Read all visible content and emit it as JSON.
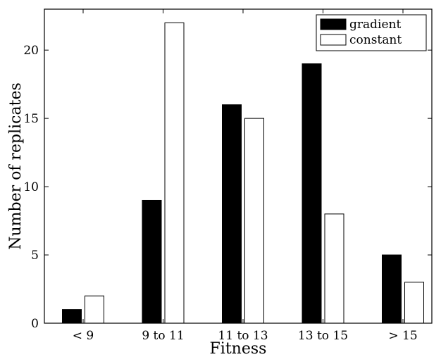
{
  "chart_data": {
    "type": "bar",
    "title": "",
    "xlabel": "Fitness",
    "ylabel": "Number of replicates",
    "categories": [
      "< 9",
      "9 to 11",
      "11 to 13",
      "13 to 15",
      "> 15"
    ],
    "series": [
      {
        "name": "gradient",
        "color": "#000000",
        "values": [
          1,
          9,
          16,
          19,
          5
        ]
      },
      {
        "name": "constant",
        "color": "#ffffff",
        "values": [
          2,
          22,
          15,
          8,
          3
        ]
      }
    ],
    "ylim": [
      0,
      23
    ],
    "yticks": [
      0,
      5,
      10,
      15,
      20
    ],
    "grid": false,
    "legend_position": "top-right"
  }
}
